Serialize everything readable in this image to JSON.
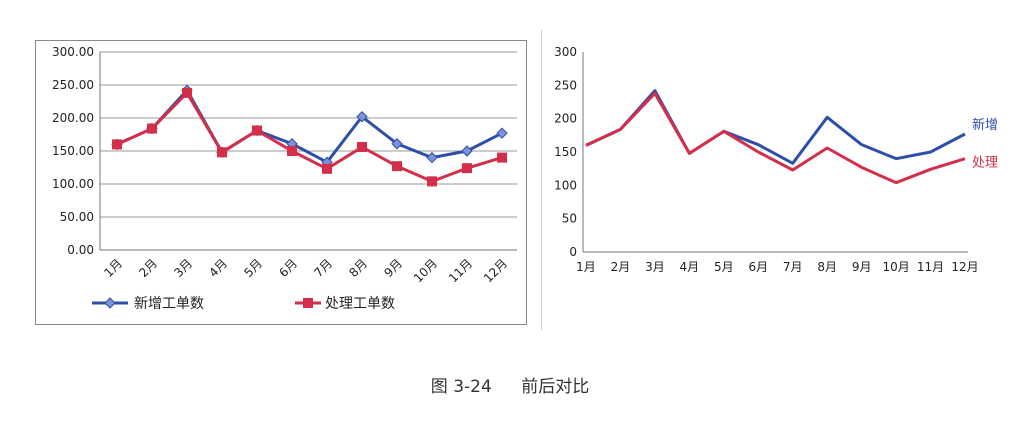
{
  "chart_data": [
    {
      "type": "line",
      "categories": [
        "1月",
        "2月",
        "3月",
        "4月",
        "5月",
        "6月",
        "7月",
        "8月",
        "9月",
        "10月",
        "11月",
        "12月"
      ],
      "series": [
        {
          "name": "新增工单数",
          "color": "#2e4fa8",
          "marker": "diamond",
          "values": [
            160,
            184,
            242,
            148,
            181,
            161,
            133,
            202,
            161,
            140,
            150,
            177
          ]
        },
        {
          "name": "处理工单数",
          "color": "#d32f4a",
          "marker": "square",
          "values": [
            160,
            184,
            238,
            148,
            181,
            150,
            123,
            156,
            127,
            104,
            124,
            140
          ]
        }
      ],
      "yticks": [
        "0.00",
        "50.00",
        "100.00",
        "150.00",
        "200.00",
        "250.00",
        "300.00"
      ],
      "ylim": [
        0,
        300
      ],
      "grid": true,
      "legend": "bottom"
    },
    {
      "type": "line",
      "categories": [
        "1月",
        "2月",
        "3月",
        "4月",
        "5月",
        "6月",
        "7月",
        "8月",
        "9月",
        "10月",
        "11月",
        "12月"
      ],
      "series": [
        {
          "name": "新增",
          "color": "#2e4fa8",
          "values": [
            160,
            184,
            242,
            148,
            181,
            161,
            133,
            202,
            161,
            140,
            150,
            177
          ]
        },
        {
          "name": "处理",
          "color": "#d32f4a",
          "values": [
            160,
            184,
            238,
            148,
            181,
            150,
            123,
            156,
            127,
            104,
            124,
            140
          ]
        }
      ],
      "yticks": [
        "0",
        "50",
        "100",
        "150",
        "200",
        "250",
        "300"
      ],
      "ylim": [
        0,
        300
      ],
      "grid": false,
      "legend": "direct-labels-right"
    }
  ],
  "caption": {
    "number": "图 3-24",
    "title": "前后对比"
  }
}
